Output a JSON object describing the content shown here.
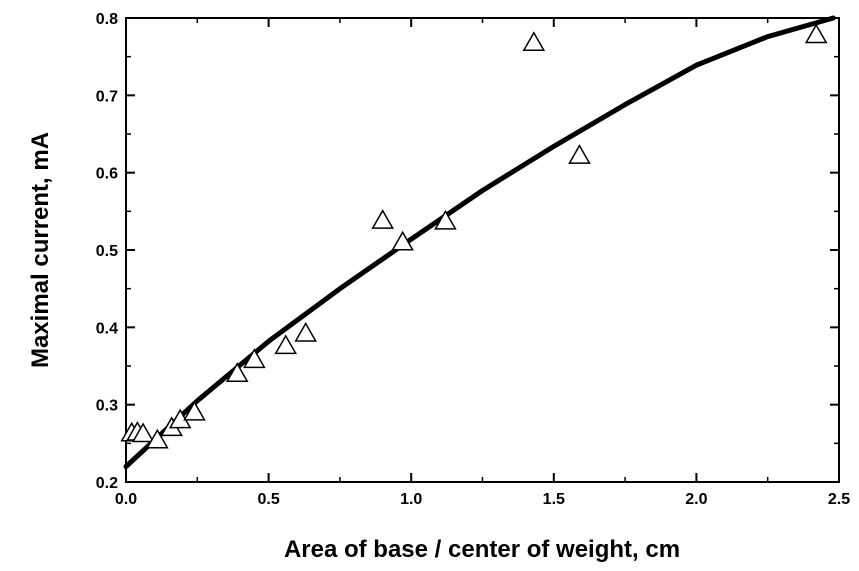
{
  "chart_data": {
    "type": "scatter",
    "title": "",
    "xlabel": "Area of base / center of weight, cm",
    "ylabel": "Maximal current, mA",
    "xlim": [
      0.0,
      2.5
    ],
    "ylim": [
      0.2,
      0.8
    ],
    "x_ticks": [
      "0.0",
      "0.5",
      "1.0",
      "1.5",
      "2.0",
      "2.5"
    ],
    "y_ticks": [
      "0.2",
      "0.3",
      "0.4",
      "0.5",
      "0.6",
      "0.7",
      "0.8"
    ],
    "grid": false,
    "series": [
      {
        "marker": "open-triangle",
        "x": [
          0.02,
          0.04,
          0.06,
          0.11,
          0.16,
          0.19,
          0.24,
          0.39,
          0.45,
          0.56,
          0.63,
          0.9,
          0.97,
          1.12,
          1.43,
          1.59,
          2.42
        ],
        "y": [
          0.263,
          0.264,
          0.262,
          0.254,
          0.27,
          0.28,
          0.29,
          0.34,
          0.358,
          0.376,
          0.392,
          0.538,
          0.51,
          0.537,
          0.768,
          0.622,
          0.778
        ]
      },
      {
        "line": "fit",
        "x": [
          0.0,
          0.25,
          0.5,
          0.75,
          1.0,
          1.25,
          1.5,
          1.75,
          2.0,
          2.25,
          2.48
        ],
        "y": [
          0.22,
          0.305,
          0.382,
          0.45,
          0.514,
          0.577,
          0.634,
          0.688,
          0.739,
          0.776,
          0.8
        ]
      }
    ],
    "colors": {
      "background": "#ffffff",
      "ink": "#000000"
    }
  }
}
